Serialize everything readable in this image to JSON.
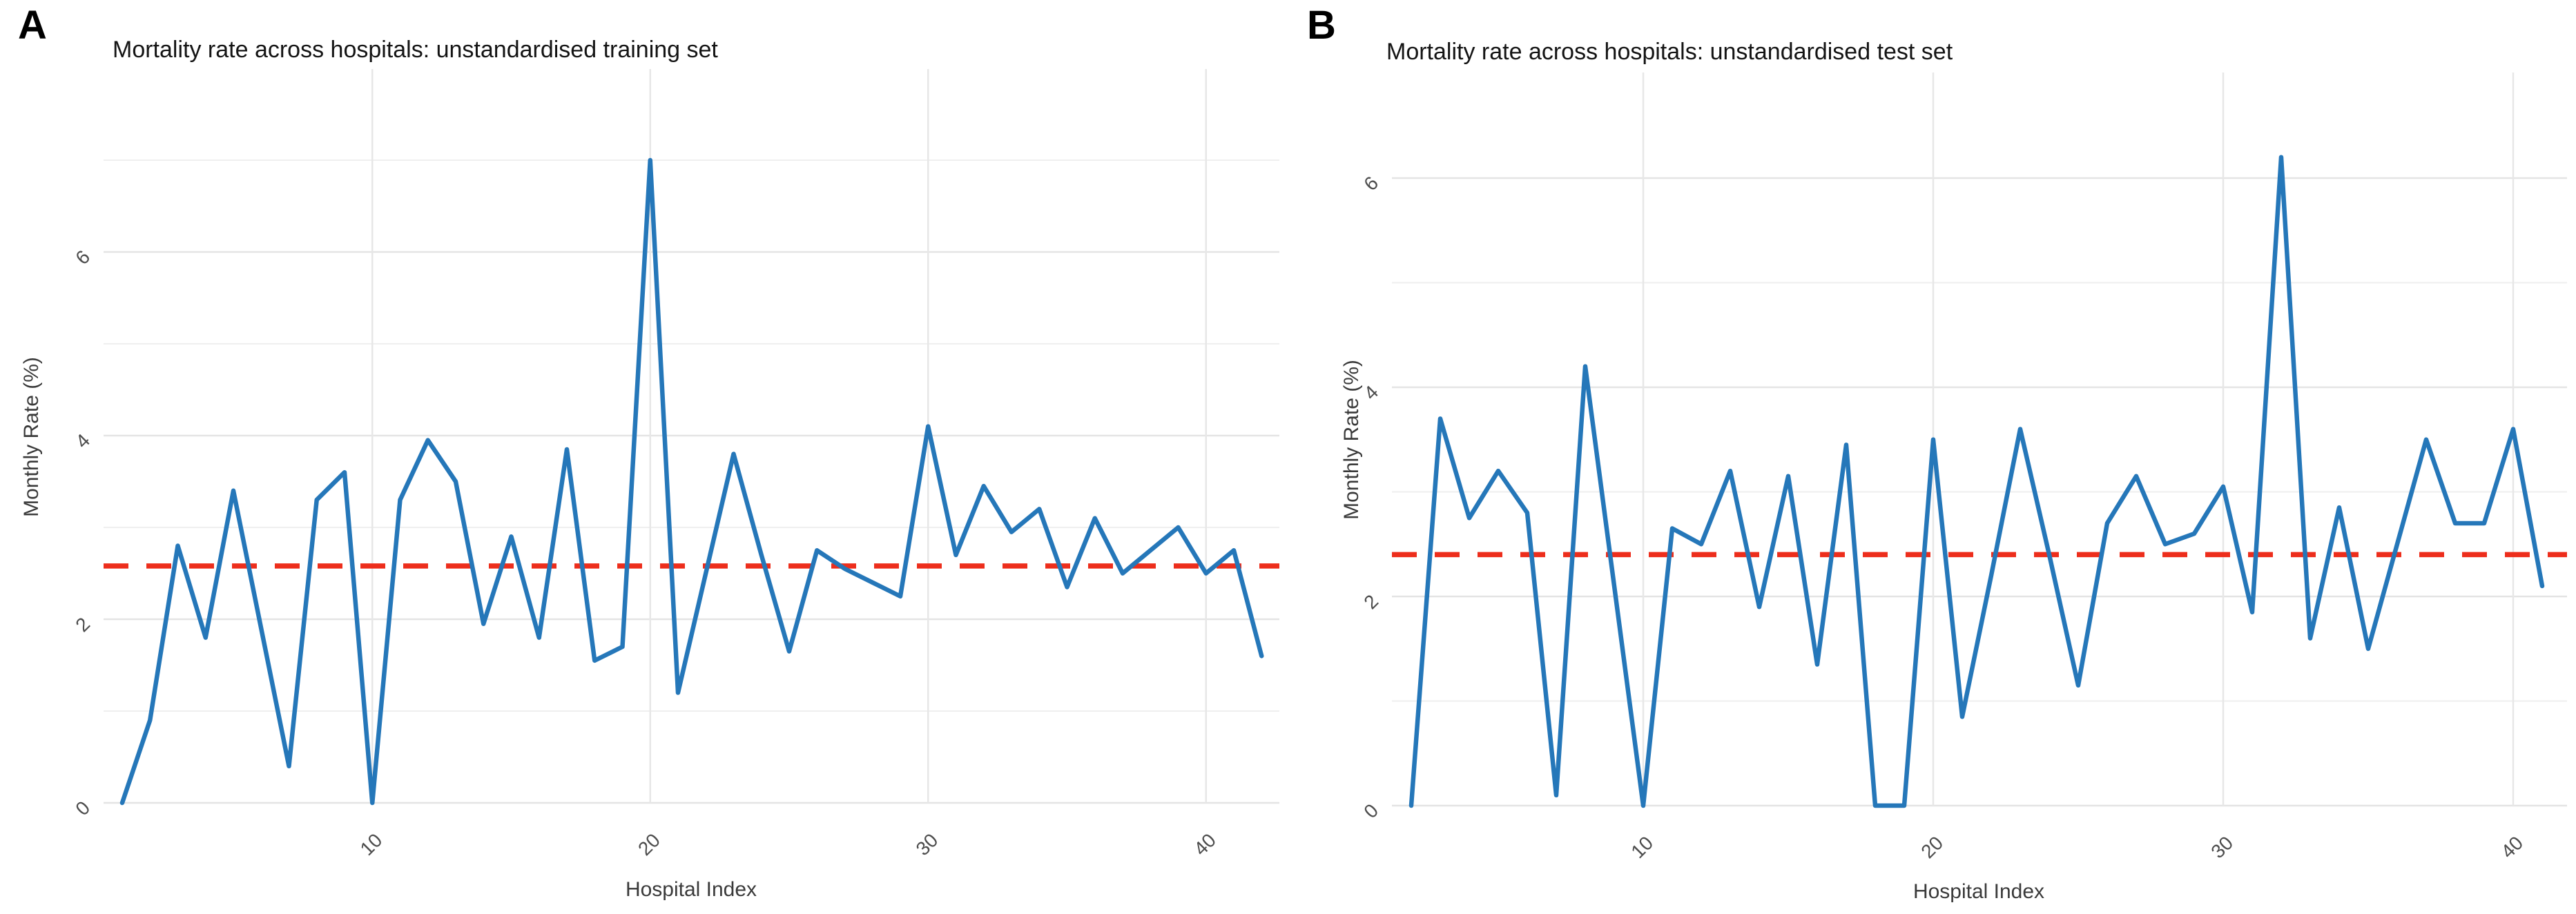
{
  "figure": {
    "background_color": "#ffffff",
    "panel_a_label": "A",
    "panel_b_label": "B"
  },
  "chart_data": [
    {
      "type": "line",
      "panel_label": "A",
      "title": "Mortality rate across hospitals: unstandardised training set",
      "xlabel": "Hospital Index",
      "ylabel": "Monthly Rate (%)",
      "x": [
        1,
        2,
        3,
        4,
        5,
        6,
        7,
        8,
        9,
        10,
        11,
        12,
        13,
        14,
        15,
        16,
        17,
        18,
        19,
        20,
        21,
        22,
        23,
        24,
        25,
        26,
        27,
        28,
        29,
        30,
        31,
        32,
        33,
        34,
        35,
        36,
        37,
        38,
        39,
        40,
        41,
        42
      ],
      "values": [
        0.0,
        0.9,
        2.8,
        1.8,
        3.4,
        1.9,
        0.4,
        3.3,
        3.6,
        0.0,
        3.3,
        3.95,
        3.5,
        1.95,
        2.9,
        1.8,
        3.85,
        1.55,
        1.7,
        7.0,
        1.2,
        2.5,
        3.8,
        2.7,
        1.65,
        2.75,
        2.55,
        2.4,
        2.25,
        4.1,
        2.7,
        3.45,
        2.95,
        3.2,
        2.35,
        3.1,
        2.5,
        2.75,
        3.0,
        2.5,
        2.75,
        1.6
      ],
      "mean_line": 2.58,
      "mean_line_style": "dashed",
      "ylim": [
        0,
        7.1
      ],
      "yticks": [
        0,
        2,
        4,
        6
      ],
      "xticks": [
        10,
        20,
        30,
        40
      ],
      "y_gridline_max": 7,
      "grid": "on",
      "legend": "none",
      "line_color": "#2577b9",
      "mean_color": "#ed2e1c"
    },
    {
      "type": "line",
      "panel_label": "B",
      "title": "Mortality rate across hospitals: unstandardised test set",
      "xlabel": "Hospital Index",
      "ylabel": "Monthly Rate (%)",
      "x": [
        2,
        3,
        4,
        5,
        6,
        7,
        8,
        9,
        10,
        11,
        12,
        13,
        14,
        15,
        16,
        17,
        18,
        19,
        20,
        21,
        22,
        23,
        24,
        25,
        26,
        27,
        28,
        29,
        30,
        31,
        32,
        33,
        34,
        35,
        36,
        37,
        38,
        39,
        40,
        41
      ],
      "values": [
        0.0,
        3.7,
        2.75,
        3.2,
        2.8,
        0.1,
        4.2,
        2.1,
        0.0,
        2.65,
        2.5,
        3.2,
        1.9,
        3.15,
        1.35,
        3.45,
        0.0,
        0.0,
        3.5,
        0.85,
        2.2,
        3.6,
        2.4,
        1.15,
        2.7,
        3.15,
        2.5,
        2.6,
        3.05,
        1.85,
        6.2,
        1.6,
        2.85,
        1.5,
        2.5,
        3.5,
        2.7,
        2.7,
        3.6,
        2.1
      ],
      "mean_line": 2.4,
      "mean_line_style": "dashed",
      "ylim": [
        0,
        6.35
      ],
      "yticks": [
        0,
        2,
        4,
        6
      ],
      "xticks": [
        10,
        20,
        30,
        40
      ],
      "y_gridline_max": 6,
      "grid": "on",
      "legend": "none",
      "line_color": "#2577b9",
      "mean_color": "#ed2e1c"
    }
  ],
  "colors": {
    "gridline_major": "#e4e4e4",
    "gridline_minor": "#efefef",
    "tick_text": "#4d4d4d"
  }
}
